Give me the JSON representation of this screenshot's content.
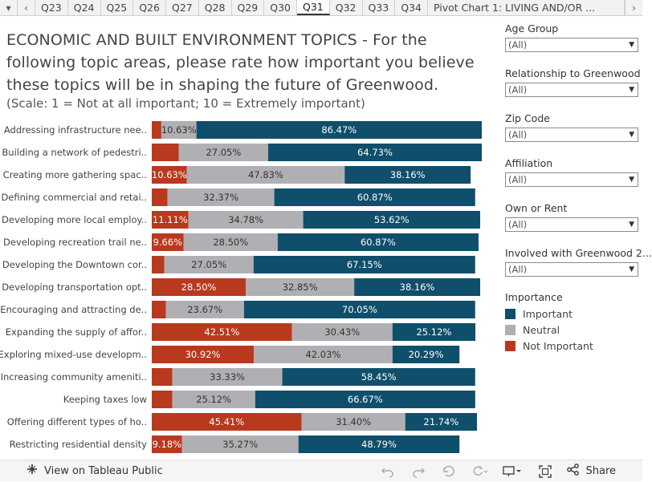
{
  "tabs": {
    "prev": "‹",
    "next": "›",
    "menu": "▾",
    "items": [
      "Q23",
      "Q24",
      "Q25",
      "Q26",
      "Q27",
      "Q28",
      "Q29",
      "Q30",
      "Q31",
      "Q32",
      "Q33",
      "Q34",
      "Pivot Chart 1: LIVING AND/OR ..."
    ],
    "active_index": 8
  },
  "title": "ECONOMIC AND BUILT ENVIRONMENT TOPICS - For the following topic areas, please rate how important you believe these topics will be in shaping the future of Greenwood.",
  "subtitle": "(Scale: 1 = Not at all important; 10 = Extremely important)",
  "colors": {
    "important": "#0f4f6b",
    "neutral": "#b0b0b4",
    "not_important": "#b9391f"
  },
  "chart_data": {
    "type": "bar",
    "orientation": "horizontal-stacked-100",
    "categories": [
      "Addressing infrastructure nee..",
      "Building a network of pedestri..",
      "Creating more gathering spac..",
      "Defining commercial and retai..",
      "Developing more local employ..",
      "Developing recreation trail ne..",
      "Developing the Downtown cor..",
      "Developing transportation opt..",
      "Encouraging and attracting de..",
      "Expanding the supply of affor..",
      "Exploring mixed-use developm..",
      "Increasing community ameniti..",
      "Keeping taxes low",
      "Offering different types of ho..",
      "Restricting residential density"
    ],
    "series": [
      {
        "name": "Not Important",
        "values": [
          2.9,
          8.22,
          10.63,
          4.76,
          11.11,
          9.66,
          3.8,
          28.5,
          4.28,
          42.51,
          30.92,
          6.22,
          6.22,
          45.41,
          9.18
        ],
        "labels": [
          "",
          "",
          "10.63%",
          "",
          "11.11%",
          "9.66%",
          "",
          "28.50%",
          "",
          "42.51%",
          "30.92%",
          "",
          "",
          "45.41%",
          "9.18%"
        ]
      },
      {
        "name": "Neutral",
        "values": [
          10.63,
          27.05,
          47.83,
          32.37,
          34.78,
          28.5,
          27.05,
          32.85,
          23.67,
          30.43,
          42.03,
          33.33,
          25.12,
          31.4,
          35.27
        ],
        "labels": [
          "10.63%",
          "27.05%",
          "47.83%",
          "32.37%",
          "34.78%",
          "28.50%",
          "27.05%",
          "32.85%",
          "23.67%",
          "30.43%",
          "42.03%",
          "33.33%",
          "25.12%",
          "31.40%",
          "35.27%"
        ]
      },
      {
        "name": "Important",
        "values": [
          86.47,
          64.73,
          38.16,
          60.87,
          53.62,
          60.87,
          67.15,
          38.16,
          70.05,
          25.12,
          20.29,
          58.45,
          66.67,
          21.74,
          48.79
        ],
        "labels": [
          "86.47%",
          "64.73%",
          "38.16%",
          "60.87%",
          "53.62%",
          "60.87%",
          "67.15%",
          "38.16%",
          "70.05%",
          "25.12%",
          "20.29%",
          "58.45%",
          "66.67%",
          "21.74%",
          "48.79%"
        ]
      }
    ],
    "xlim": [
      0,
      100
    ],
    "title": "",
    "xlabel": "",
    "ylabel": ""
  },
  "filters": [
    {
      "label": "Age Group",
      "value": "(All)"
    },
    {
      "label": "Relationship to Greenwood",
      "value": "(All)"
    },
    {
      "label": "Zip Code",
      "value": "(All)"
    },
    {
      "label": "Affiliation",
      "value": "(All)"
    },
    {
      "label": "Own or Rent",
      "value": "(All)"
    },
    {
      "label": "Involved with Greenwood 2...",
      "value": "(All)"
    }
  ],
  "legend": {
    "title": "Importance",
    "items": [
      {
        "label": "Important",
        "color": "#0f4f6b"
      },
      {
        "label": "Neutral",
        "color": "#b0b0b4"
      },
      {
        "label": "Not Important",
        "color": "#b9391f"
      }
    ]
  },
  "toolbar": {
    "view_label": "View on Tableau Public",
    "share_label": "Share",
    "icons": [
      "tableau-icon",
      "undo-icon",
      "redo-icon",
      "revert-icon",
      "refresh-icon",
      "download-icon",
      "fullscreen-icon",
      "share-icon"
    ]
  }
}
